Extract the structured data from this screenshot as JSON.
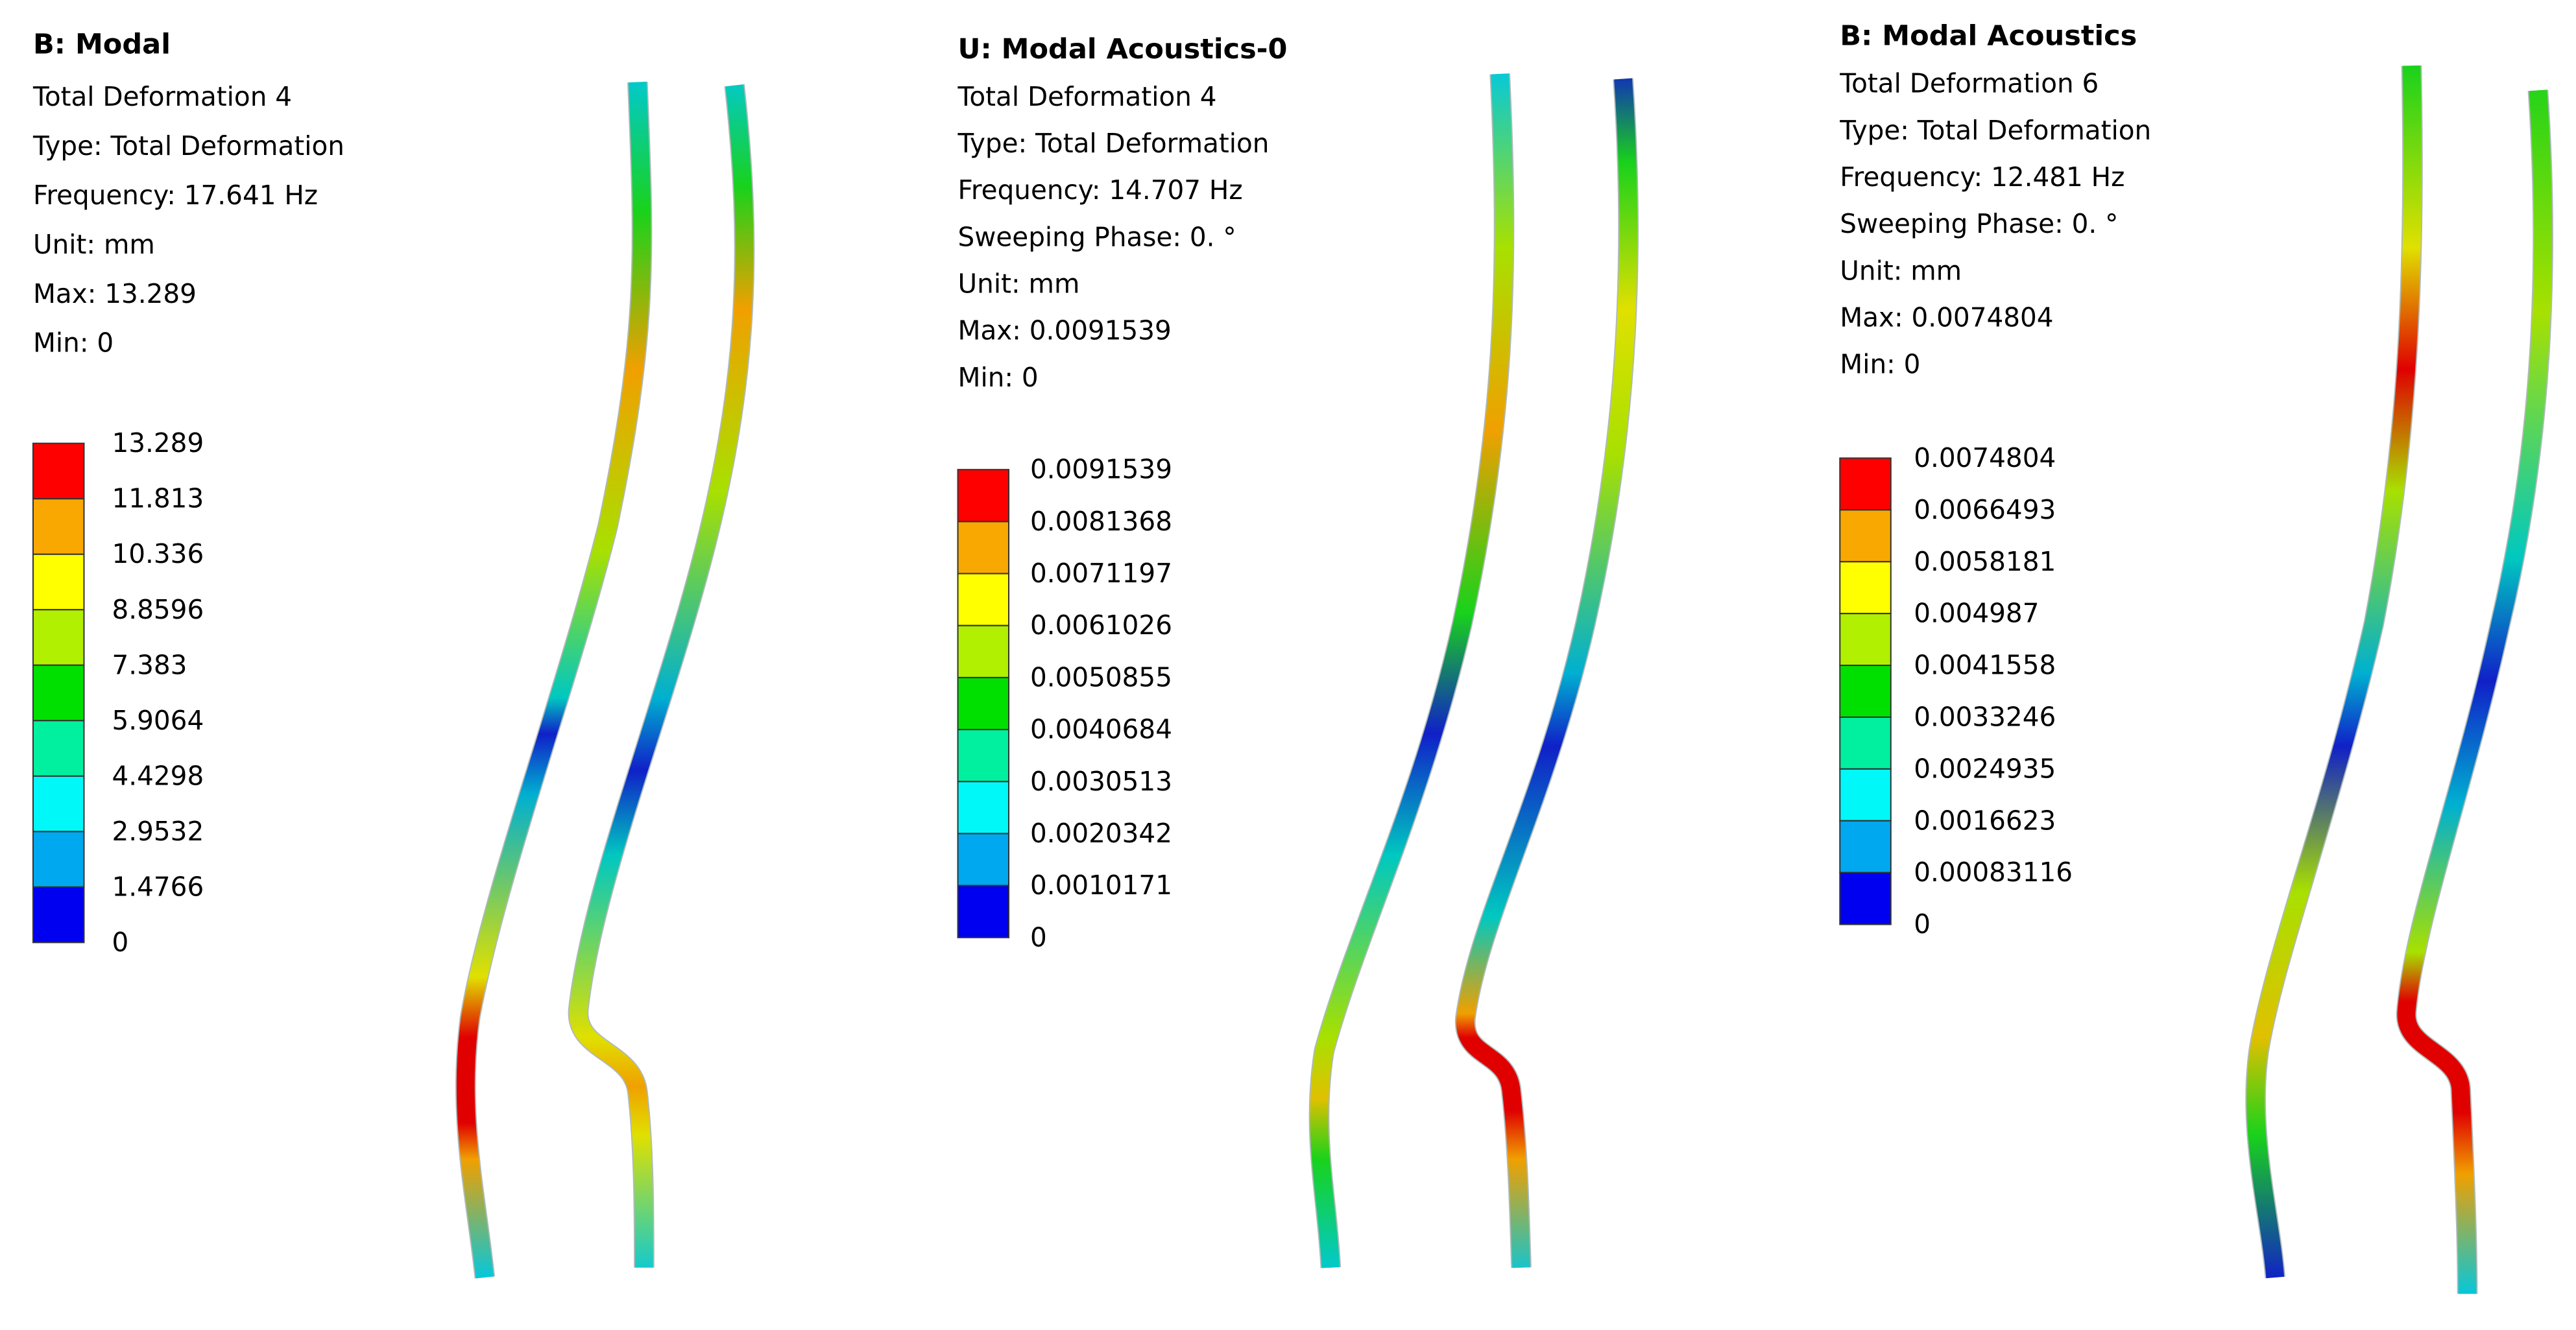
{
  "panels": [
    {
      "title": "B: Modal",
      "lines": [
        "Total Deformation 4",
        "Type: Total Deformation",
        "Frequency: 17.641 Hz",
        "Unit: mm",
        "Max: 13.289",
        "Min: 0"
      ],
      "legend": [
        "13.289",
        "11.813",
        "10.336",
        "8.8596",
        "7.383",
        "5.9064",
        "4.4298",
        "2.9532",
        "1.4766",
        "0"
      ]
    },
    {
      "title": "U: Modal Acoustics-0",
      "lines": [
        "Total Deformation 4",
        "Type: Total Deformation",
        "Frequency: 14.707 Hz",
        "Sweeping Phase: 0. °",
        "Unit: mm",
        "Max: 0.0091539",
        "Min: 0"
      ],
      "legend": [
        "0.0091539",
        "0.0081368",
        "0.0071197",
        "0.0061026",
        "0.0050855",
        "0.0040684",
        "0.0030513",
        "0.0020342",
        "0.0010171",
        "0"
      ]
    },
    {
      "title": "B: Modal Acoustics",
      "lines": [
        "Total Deformation 6",
        "Type: Total Deformation",
        "Frequency: 12.481 Hz",
        "Sweeping Phase: 0. °",
        "Unit: mm",
        "Max: 0.0074804",
        "Min: 0"
      ],
      "legend": [
        "0.0074804",
        "0.0066493",
        "0.0058181",
        "0.004987",
        "0.0041558",
        "0.0033246",
        "0.0024935",
        "0.0016623",
        "0.00083116",
        "0"
      ]
    }
  ]
}
